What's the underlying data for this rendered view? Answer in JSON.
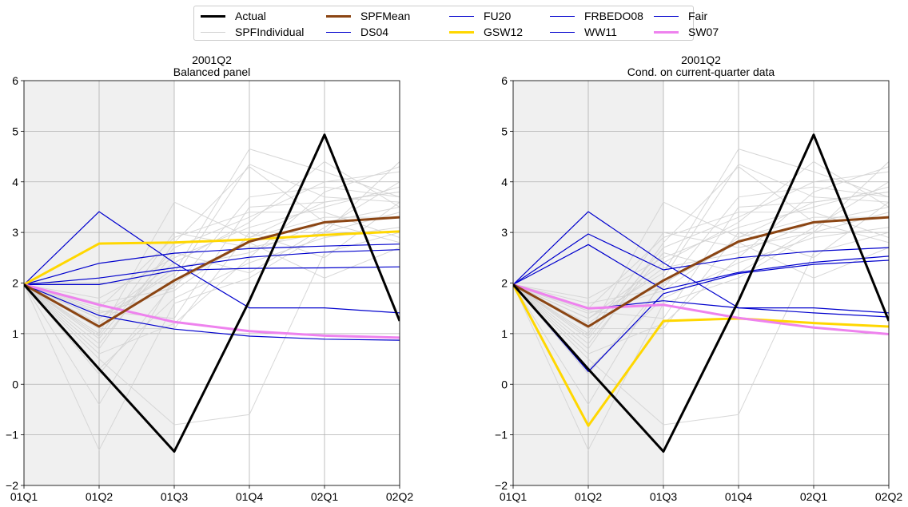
{
  "chart_data": {
    "type": "line",
    "legend": {
      "placement": "top-center",
      "entries": [
        {
          "label": "Actual",
          "color": "#000000",
          "width": 3
        },
        {
          "label": "SPFIndividual",
          "color": "#d3d3d3",
          "width": 1
        },
        {
          "label": "SPFMean",
          "color": "#8b4513",
          "width": 3
        },
        {
          "label": "DS04",
          "color": "#0000cd",
          "width": 1
        },
        {
          "label": "FU20",
          "color": "#0000cd",
          "width": 1
        },
        {
          "label": "GSW12",
          "color": "#ffd700",
          "width": 3
        },
        {
          "label": "FRBEDO08",
          "color": "#0000cd",
          "width": 1
        },
        {
          "label": "WW11",
          "color": "#0000cd",
          "width": 1
        },
        {
          "label": "Fair",
          "color": "#0000cd",
          "width": 1
        },
        {
          "label": "SW07",
          "color": "#ee82ee",
          "width": 3
        }
      ]
    },
    "panels": [
      {
        "title_line1": "2001Q2",
        "title_line2": "Balanced panel",
        "categories": [
          "01Q1",
          "01Q2",
          "01Q3",
          "01Q4",
          "02Q1",
          "02Q2"
        ],
        "ylim": [
          -2,
          6
        ],
        "yticks": [
          "−2",
          "−1",
          "0",
          "1",
          "2",
          "3",
          "4",
          "5",
          "6"
        ],
        "grid": true,
        "shaded_range": [
          "01Q1",
          "01Q3"
        ],
        "individual": [
          [
            1.97,
            1.4,
            1.85,
            2.9,
            3.6,
            3.8
          ],
          [
            1.97,
            1.2,
            2.3,
            2.6,
            3.2,
            3.5
          ],
          [
            1.97,
            0.9,
            2.7,
            3.3,
            4.0,
            4.2
          ],
          [
            1.97,
            0.3,
            1.7,
            2.4,
            2.9,
            3.1
          ],
          [
            1.97,
            -0.4,
            2.1,
            4.35,
            3.7,
            3.6
          ],
          [
            1.97,
            -1.3,
            1.6,
            2.1,
            3.0,
            3.4
          ],
          [
            1.97,
            1.7,
            2.5,
            3.1,
            3.5,
            3.9
          ],
          [
            1.97,
            1.0,
            3.6,
            2.9,
            3.3,
            3.3
          ],
          [
            1.97,
            0.6,
            1.2,
            2.5,
            3.8,
            4.3
          ],
          [
            1.97,
            1.3,
            2.2,
            4.65,
            4.2,
            3.7
          ],
          [
            1.97,
            0.5,
            -0.8,
            -0.6,
            2.6,
            3.0
          ],
          [
            1.97,
            1.5,
            2.9,
            3.4,
            3.4,
            2.9
          ],
          [
            1.97,
            1.1,
            1.1,
            3.0,
            2.5,
            3.6
          ],
          [
            1.97,
            0.8,
            2.6,
            2.2,
            3.1,
            4.0
          ],
          [
            1.97,
            1.6,
            1.9,
            3.7,
            3.9,
            3.7
          ],
          [
            1.97,
            0.2,
            2.0,
            2.8,
            2.1,
            2.7
          ],
          [
            1.97,
            1.3,
            2.4,
            3.2,
            4.4,
            3.5
          ],
          [
            1.97,
            0.95,
            3.0,
            2.7,
            3.0,
            4.4
          ],
          [
            1.97,
            1.45,
            1.3,
            3.5,
            3.6,
            3.8
          ],
          [
            1.97,
            0.7,
            2.8,
            4.3,
            3.2,
            2.8
          ]
        ],
        "series": [
          {
            "name": "Actual",
            "values": [
              1.97,
              0.3,
              -1.33,
              1.65,
              4.93,
              1.25
            ]
          },
          {
            "name": "SPFMean",
            "values": [
              1.97,
              1.14,
              2.05,
              2.82,
              3.2,
              3.3
            ]
          },
          {
            "name": "GSW12",
            "values": [
              1.97,
              2.78,
              2.8,
              2.86,
              2.95,
              3.02
            ]
          },
          {
            "name": "DS04",
            "values": [
              1.97,
              3.41,
              2.4,
              1.51,
              1.51,
              1.41
            ]
          },
          {
            "name": "FU20",
            "values": [
              1.97,
              2.39,
              2.59,
              2.68,
              2.73,
              2.77
            ]
          },
          {
            "name": "FRBEDO08",
            "values": [
              1.97,
              2.1,
              2.3,
              2.51,
              2.61,
              2.66
            ]
          },
          {
            "name": "WW11",
            "values": [
              1.97,
              1.97,
              2.25,
              2.29,
              2.3,
              2.32
            ]
          },
          {
            "name": "Fair",
            "values": [
              1.97,
              1.36,
              1.09,
              0.95,
              0.89,
              0.87
            ]
          },
          {
            "name": "SW07",
            "values": [
              1.97,
              1.57,
              1.23,
              1.05,
              0.96,
              0.92
            ]
          }
        ]
      },
      {
        "title_line1": "2001Q2",
        "title_line2": "Cond. on current-quarter data",
        "categories": [
          "01Q1",
          "01Q2",
          "01Q3",
          "01Q4",
          "02Q1",
          "02Q2"
        ],
        "ylim": [
          -2,
          6
        ],
        "yticks": [
          "−2",
          "−1",
          "0",
          "1",
          "2",
          "3",
          "4",
          "5",
          "6"
        ],
        "grid": true,
        "shaded_range": [
          "01Q1",
          "01Q3"
        ],
        "individual": [
          [
            1.97,
            1.4,
            1.85,
            2.9,
            3.6,
            3.8
          ],
          [
            1.97,
            1.2,
            2.3,
            2.6,
            3.2,
            3.5
          ],
          [
            1.97,
            0.9,
            2.7,
            3.3,
            4.0,
            4.2
          ],
          [
            1.97,
            0.3,
            1.7,
            2.4,
            2.9,
            3.1
          ],
          [
            1.97,
            -0.4,
            2.1,
            4.35,
            3.7,
            3.6
          ],
          [
            1.97,
            -1.3,
            1.6,
            2.1,
            3.0,
            3.4
          ],
          [
            1.97,
            1.7,
            2.5,
            3.1,
            3.5,
            3.9
          ],
          [
            1.97,
            1.0,
            3.6,
            2.9,
            3.3,
            3.3
          ],
          [
            1.97,
            0.6,
            1.2,
            2.5,
            3.8,
            4.3
          ],
          [
            1.97,
            1.3,
            2.2,
            4.65,
            4.2,
            3.7
          ],
          [
            1.97,
            0.5,
            -0.8,
            -0.6,
            2.6,
            3.0
          ],
          [
            1.97,
            1.5,
            2.9,
            3.4,
            3.4,
            2.9
          ],
          [
            1.97,
            1.1,
            1.1,
            3.0,
            2.5,
            3.6
          ],
          [
            1.97,
            0.8,
            2.6,
            2.2,
            3.1,
            4.0
          ],
          [
            1.97,
            1.6,
            1.9,
            3.7,
            3.9,
            3.7
          ],
          [
            1.97,
            0.2,
            2.0,
            2.8,
            2.1,
            2.7
          ],
          [
            1.97,
            1.3,
            2.4,
            3.2,
            4.4,
            3.5
          ],
          [
            1.97,
            0.95,
            3.0,
            2.7,
            3.0,
            4.4
          ],
          [
            1.97,
            1.45,
            1.3,
            3.5,
            3.6,
            3.8
          ],
          [
            1.97,
            0.7,
            2.8,
            4.3,
            3.2,
            2.8
          ]
        ],
        "series": [
          {
            "name": "Actual",
            "values": [
              1.97,
              0.3,
              -1.33,
              1.65,
              4.93,
              1.25
            ]
          },
          {
            "name": "SPFMean",
            "values": [
              1.97,
              1.14,
              2.05,
              2.82,
              3.2,
              3.3
            ]
          },
          {
            "name": "GSW12",
            "values": [
              1.97,
              -0.82,
              1.25,
              1.3,
              1.21,
              1.14
            ]
          },
          {
            "name": "DS04",
            "values": [
              1.97,
              3.41,
              2.4,
              1.51,
              1.51,
              1.41
            ]
          },
          {
            "name": "FU20",
            "values": [
              1.97,
              2.97,
              2.26,
              2.5,
              2.63,
              2.7
            ]
          },
          {
            "name": "FRBEDO08",
            "values": [
              1.97,
              2.76,
              1.87,
              2.21,
              2.41,
              2.53
            ]
          },
          {
            "name": "WW11",
            "values": [
              1.97,
              0.25,
              1.79,
              2.19,
              2.37,
              2.45
            ]
          },
          {
            "name": "Fair",
            "values": [
              1.97,
              1.49,
              1.65,
              1.51,
              1.41,
              1.33
            ]
          },
          {
            "name": "SW07",
            "values": [
              1.97,
              1.5,
              1.57,
              1.31,
              1.12,
              0.99
            ]
          }
        ]
      }
    ]
  }
}
